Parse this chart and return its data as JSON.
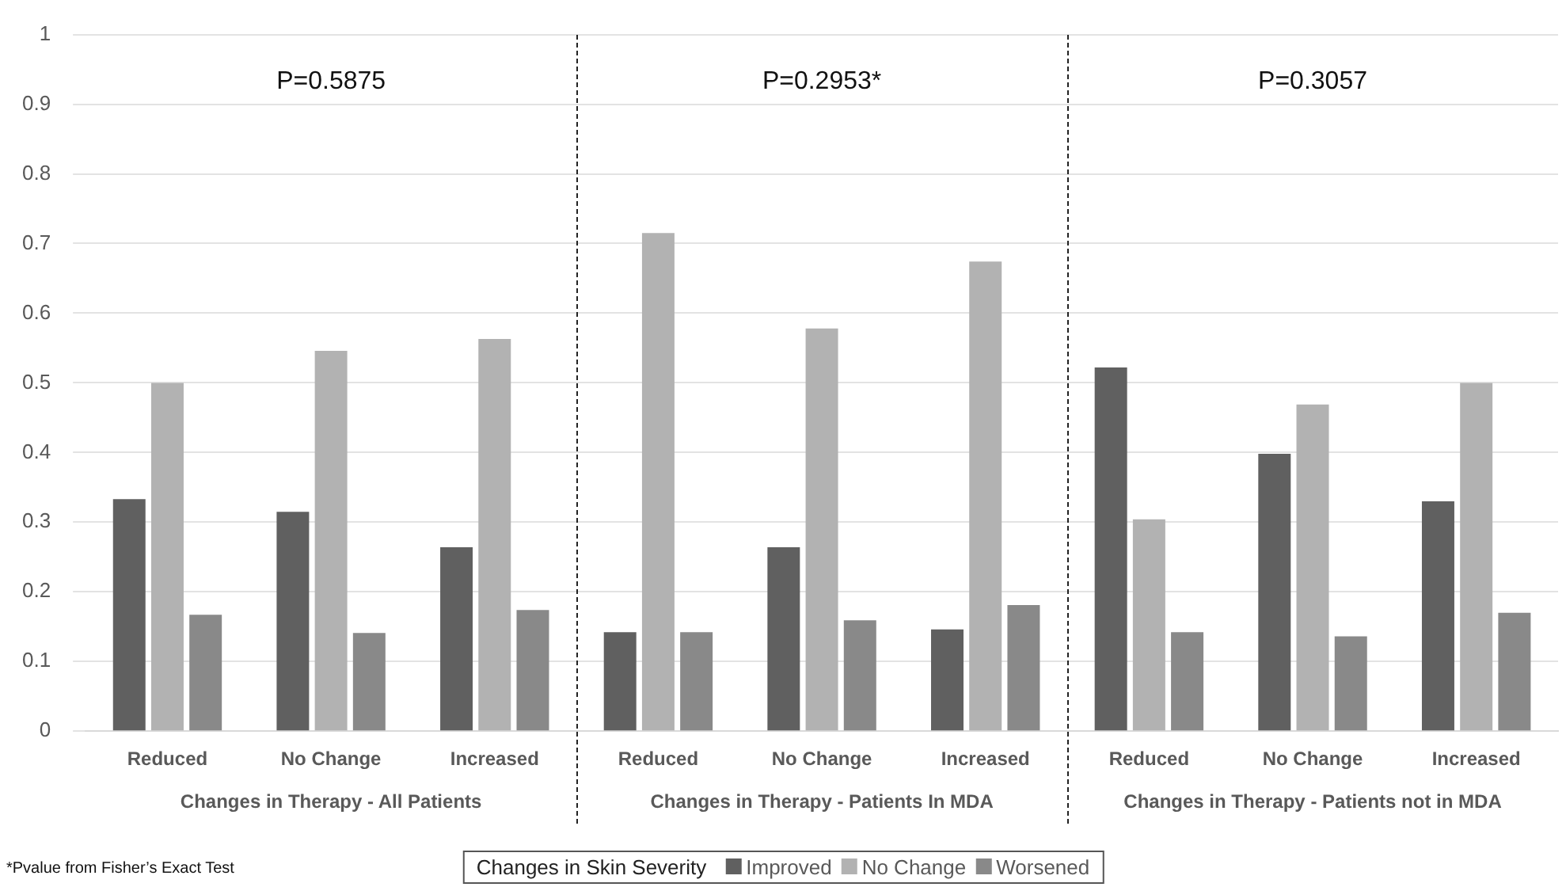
{
  "chart_data": {
    "type": "bar",
    "categories": [
      "Reduced",
      "No Change",
      "Increased",
      "Reduced",
      "No Change",
      "Increased",
      "Reduced",
      "No Change",
      "Increased"
    ],
    "series": [
      {
        "name": "Improved",
        "color": "#606060",
        "values": [
          0.333,
          0.315,
          0.264,
          0.142,
          0.264,
          0.146,
          0.522,
          0.398,
          0.33
        ]
      },
      {
        "name": "No Change",
        "color": "#b2b2b2",
        "values": [
          0.5,
          0.546,
          0.563,
          0.715,
          0.578,
          0.674,
          0.304,
          0.469,
          0.5
        ]
      },
      {
        "name": "Worsened",
        "color": "#898989",
        "values": [
          0.167,
          0.141,
          0.174,
          0.142,
          0.159,
          0.181,
          0.142,
          0.136,
          0.17
        ]
      }
    ],
    "ylim": [
      0,
      1
    ],
    "yticks": [
      0,
      0.1,
      0.2,
      0.3,
      0.4,
      0.5,
      0.6,
      0.7,
      0.8,
      0.9,
      1
    ],
    "grid": "y",
    "legend": "bottom",
    "legend_title": "Changes in Skin Severity",
    "annotations": [
      "P=0.5875",
      "P=0.2953*",
      "P=0.3057",
      "Changes in Therapy - All Patients",
      "Changes in Therapy - Patients In MDA",
      "Changes in Therapy - Patients not in MDA",
      "*Pvalue from Fisher’s Exact Test"
    ]
  }
}
